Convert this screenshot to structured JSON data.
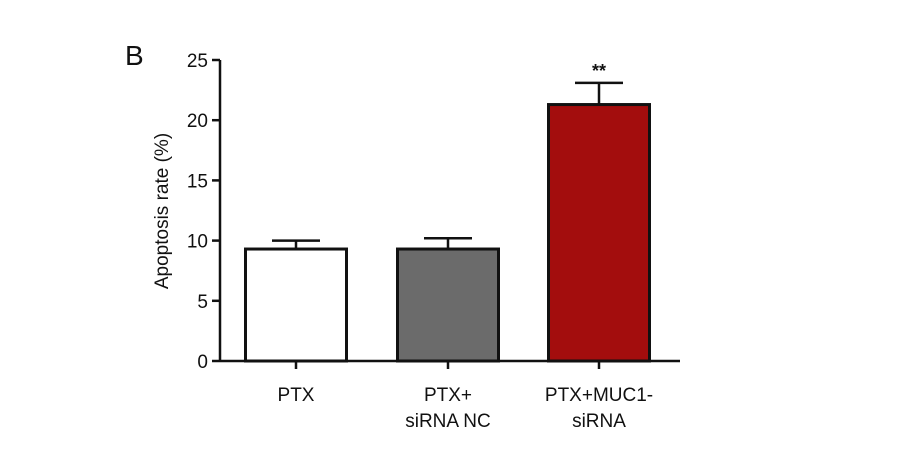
{
  "panel_label": "B",
  "chart_data": {
    "type": "bar",
    "categories": [
      [
        "PTX"
      ],
      [
        "PTX+",
        "siRNA NC"
      ],
      [
        "PTX+MUC1-",
        "siRNA"
      ]
    ],
    "values": [
      9.3,
      9.3,
      21.3
    ],
    "errors": [
      0.7,
      0.9,
      1.8
    ],
    "bar_colors": [
      "#ffffff",
      "#6b6b6b",
      "#a30d0d"
    ],
    "annotations": [
      "",
      "",
      "**"
    ],
    "ylabel": "Apoptosis rate (%)",
    "xlabel": "",
    "ylim": [
      0,
      25
    ],
    "yticks": [
      0,
      5,
      10,
      15,
      20,
      25
    ],
    "grid": false
  }
}
